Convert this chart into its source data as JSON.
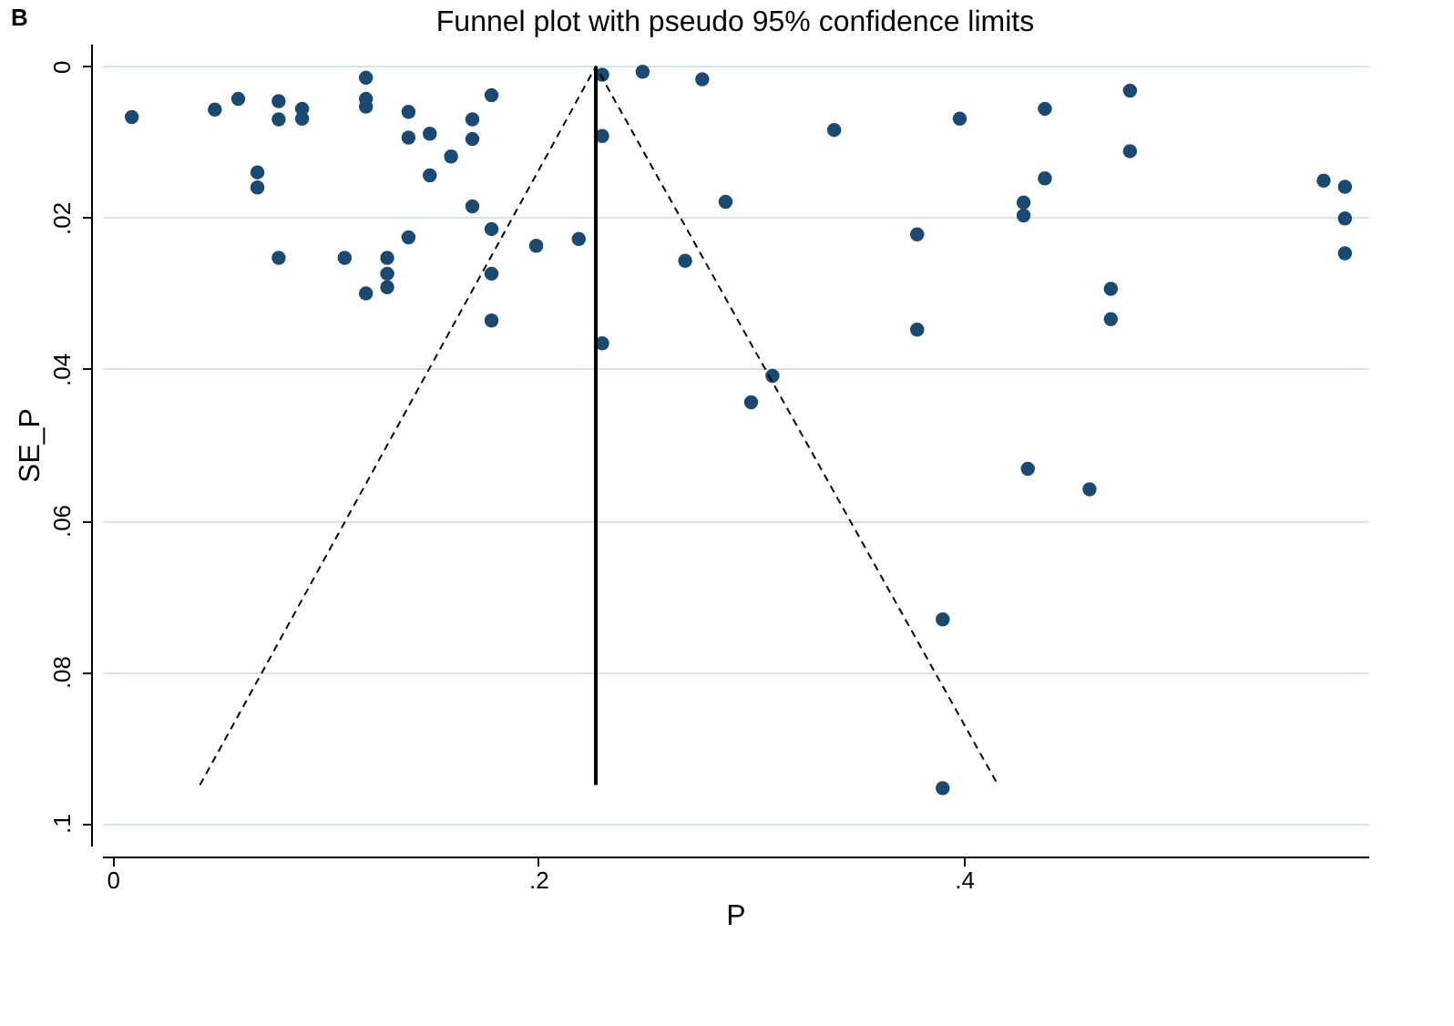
{
  "chart_data": {
    "type": "scatter",
    "title": "Funnel plot with pseudo 95% confidence limits",
    "xlabel": "P",
    "ylabel": "SE_P",
    "annotations": [
      "B"
    ],
    "xlim": [
      -0.005,
      0.59
    ],
    "ylim": [
      0.103,
      -0.003
    ],
    "xticks": [
      0,
      {
        "value": 0.2,
        "label": ".2"
      },
      {
        "value": 0.4,
        "label": ".4"
      }
    ],
    "yticks": [
      0,
      {
        "value": 0.02,
        "label": ".02"
      },
      {
        "value": 0.04,
        "label": ".04"
      },
      {
        "value": 0.06,
        "label": ".06"
      },
      {
        "value": 0.08,
        "label": ".08"
      },
      {
        "value": 0.1,
        "label": ".1"
      }
    ],
    "grid": "y",
    "marker": "circle",
    "series": [
      {
        "color": "#1a4a72",
        "x": [
          0.009,
          0.048,
          0.059,
          0.078,
          0.078,
          0.089,
          0.089,
          0.068,
          0.068,
          0.078,
          0.109,
          0.119,
          0.119,
          0.119,
          0.119,
          0.129,
          0.129,
          0.129,
          0.139,
          0.139,
          0.139,
          0.149,
          0.149,
          0.159,
          0.169,
          0.169,
          0.169,
          0.178,
          0.178,
          0.178,
          0.178,
          0.199,
          0.23,
          0.249,
          0.277,
          0.23,
          0.339,
          0.398,
          0.288,
          0.219,
          0.269,
          0.378,
          0.378,
          0.23,
          0.31,
          0.3,
          0.39,
          0.39,
          0.43,
          0.438,
          0.478,
          0.478,
          0.438,
          0.428,
          0.428,
          0.569,
          0.579,
          0.579,
          0.579,
          0.469,
          0.469,
          0.459
        ],
        "values": [
          0.0067,
          0.0057,
          0.0043,
          0.0046,
          0.007,
          0.0056,
          0.0069,
          0.014,
          0.016,
          0.0253,
          0.0253,
          0.0015,
          0.0043,
          0.0053,
          0.03,
          0.0253,
          0.0274,
          0.0292,
          0.006,
          0.0094,
          0.0226,
          0.0089,
          0.0144,
          0.0119,
          0.007,
          0.0096,
          0.0185,
          0.0038,
          0.0215,
          0.0274,
          0.0336,
          0.0237,
          0.0011,
          0.0007,
          0.0017,
          0.0092,
          0.0084,
          0.0069,
          0.0179,
          0.0228,
          0.0257,
          0.0222,
          0.0348,
          0.0366,
          0.0409,
          0.0444,
          0.0731,
          0.0954,
          0.0532,
          0.0056,
          0.0032,
          0.0112,
          0.0148,
          0.018,
          0.0197,
          0.0151,
          0.0159,
          0.0201,
          0.0247,
          0.0294,
          0.0334,
          0.0559
        ]
      },
      {
        "type": "line",
        "color": "#000000",
        "line_style": "dashed",
        "marker": "none",
        "x": [
          0.041,
          0.227,
          0.416
        ],
        "values": [
          0.095,
          0,
          0.095
        ]
      },
      {
        "type": "line",
        "color": "#000000",
        "line_style": "solid",
        "marker": "none",
        "x": [
          0.227,
          0.227
        ],
        "values": [
          0,
          0.095
        ]
      }
    ]
  }
}
